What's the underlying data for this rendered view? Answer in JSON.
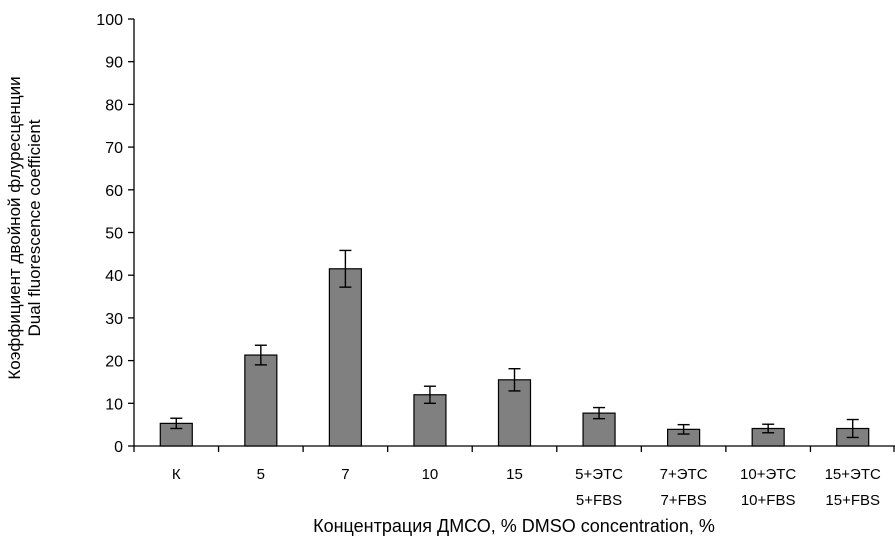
{
  "chart_data": {
    "type": "bar",
    "categories": [
      [
        "К"
      ],
      [
        "5"
      ],
      [
        "7"
      ],
      [
        "10"
      ],
      [
        "15"
      ],
      [
        "5+ЭТС",
        "5+FBS"
      ],
      [
        "7+ЭТС",
        "7+FBS"
      ],
      [
        "10+ЭТС",
        "10+FBS"
      ],
      [
        "15+ЭТС",
        "15+FBS"
      ]
    ],
    "values": [
      5.3,
      21.3,
      41.5,
      12.0,
      15.5,
      7.7,
      3.9,
      4.1,
      4.1
    ],
    "errors": [
      1.2,
      2.3,
      4.3,
      2.0,
      2.6,
      1.3,
      1.1,
      1.0,
      2.1
    ],
    "ylim": [
      0,
      100
    ],
    "yticks": [
      0,
      10,
      20,
      30,
      40,
      50,
      60,
      70,
      80,
      90,
      100
    ],
    "ylabel_lines": [
      "Коэффициент двойной флуресценции",
      "Dual fluorescence coefficient"
    ],
    "xlabel": "Концентрация ДМСО, % DMSO concentration, %",
    "bar_color": "#808080",
    "grid": false,
    "legend": "none"
  }
}
